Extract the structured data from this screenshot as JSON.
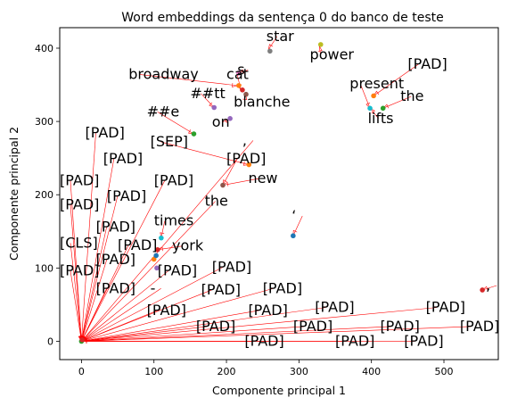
{
  "chart_data": {
    "type": "scatter",
    "title": "Word embeddings da sentença 0 do banco de teste",
    "xlabel": "Componente principal 1",
    "ylabel": "Componente principal 2",
    "xlim": [
      -30,
      575
    ],
    "ylim": [
      -25,
      428
    ],
    "xticks": [
      0,
      100,
      200,
      300,
      400,
      500
    ],
    "yticks": [
      0,
      100,
      200,
      300,
      400
    ],
    "grid": false,
    "arrow_color": "#ff0000",
    "points": [
      {
        "x": 0,
        "y": 0,
        "color": "#2ca02c"
      },
      {
        "x": 1,
        "y": 2,
        "color": "#d62728"
      },
      {
        "x": 330,
        "y": 405,
        "color": "#bcbd22"
      },
      {
        "x": 260,
        "y": 396,
        "color": "#7f7f7f"
      },
      {
        "x": 217,
        "y": 349,
        "color": "#ff7f0e"
      },
      {
        "x": 222,
        "y": 343,
        "color": "#d62728"
      },
      {
        "x": 227,
        "y": 337,
        "color": "#8c564b"
      },
      {
        "x": 217,
        "y": 366,
        "color": "#e377c2"
      },
      {
        "x": 183,
        "y": 319,
        "color": "#9467bd"
      },
      {
        "x": 205,
        "y": 304,
        "color": "#9467bd"
      },
      {
        "x": 155,
        "y": 283,
        "color": "#2ca02c"
      },
      {
        "x": 403,
        "y": 335,
        "color": "#ff7f0e"
      },
      {
        "x": 398,
        "y": 318,
        "color": "#17becf"
      },
      {
        "x": 416,
        "y": 318,
        "color": "#2ca02c"
      },
      {
        "x": 231,
        "y": 241,
        "color": "#ff7f0e"
      },
      {
        "x": 195,
        "y": 213,
        "color": "#8c564b"
      },
      {
        "x": 292,
        "y": 144,
        "color": "#1f77b4"
      },
      {
        "x": 553,
        "y": 70,
        "color": "#d62728"
      },
      {
        "x": 110,
        "y": 141,
        "color": "#17becf"
      },
      {
        "x": 105,
        "y": 125,
        "color": "#d62728"
      },
      {
        "x": 100,
        "y": 112,
        "color": "#ff7f0e"
      },
      {
        "x": 104,
        "y": 100,
        "color": "#9467bd"
      },
      {
        "x": 103,
        "y": 117,
        "color": "#1f77b4"
      }
    ],
    "labels": [
      {
        "text": "star",
        "x": 255,
        "y": 410,
        "tx": 258,
        "ty": 398
      },
      {
        "text": "power",
        "x": 315,
        "y": 385,
        "tx": 328,
        "ty": 403
      },
      {
        "text": "s",
        "x": 215,
        "y": 364,
        "tx": 217,
        "ty": 366
      },
      {
        "text": "broadway",
        "x": 65,
        "y": 358,
        "tx": 215,
        "ty": 349
      },
      {
        "text": "cat",
        "x": 200,
        "y": 358,
        "tx": 220,
        "ty": 343
      },
      {
        "text": "##tt",
        "x": 150,
        "y": 332,
        "tx": 183,
        "ty": 319
      },
      {
        "text": "blanche",
        "x": 210,
        "y": 320,
        "tx": 226,
        "ty": 337
      },
      {
        "text": "##e",
        "x": 90,
        "y": 307,
        "tx": 155,
        "ty": 283
      },
      {
        "text": "on",
        "x": 180,
        "y": 293,
        "tx": 205,
        "ty": 304
      },
      {
        "text": "[PAD]",
        "x": 450,
        "y": 372,
        "tx": 403,
        "ty": 335
      },
      {
        "text": "present",
        "x": 370,
        "y": 345,
        "tx": 398,
        "ty": 318
      },
      {
        "text": "the",
        "x": 440,
        "y": 328,
        "tx": 416,
        "ty": 318
      },
      {
        "text": "lifts",
        "x": 395,
        "y": 298,
        "tx": 398,
        "ty": 318
      },
      {
        "text": ",",
        "x": 222,
        "y": 268,
        "tx": 0,
        "ty": 0
      },
      {
        "text": "[SEP]",
        "x": 95,
        "y": 266,
        "tx": 231,
        "ty": 241
      },
      {
        "text": "[PAD]",
        "x": 200,
        "y": 243,
        "tx": 195,
        "ty": 213
      },
      {
        "text": "new",
        "x": 230,
        "y": 216,
        "tx": 195,
        "ty": 213
      },
      {
        "text": "the",
        "x": 170,
        "y": 185,
        "tx": 0,
        "ty": 0
      },
      {
        "text": "‘",
        "x": 290,
        "y": 165,
        "tx": 292,
        "ty": 144
      },
      {
        "text": "[PAD]",
        "x": 5,
        "y": 278,
        "tx": 0,
        "ty": 0
      },
      {
        "text": "[PAD]",
        "x": 30,
        "y": 243,
        "tx": 0,
        "ty": 0
      },
      {
        "text": "[PAD]",
        "x": -30,
        "y": 213,
        "tx": 0,
        "ty": 0
      },
      {
        "text": "[PAD]",
        "x": 100,
        "y": 213,
        "tx": 0,
        "ty": 0
      },
      {
        "text": "[PAD]",
        "x": 35,
        "y": 192,
        "tx": 0,
        "ty": 0
      },
      {
        "text": "[PAD]",
        "x": -30,
        "y": 180,
        "tx": 0,
        "ty": 0
      },
      {
        "text": "times",
        "x": 100,
        "y": 158,
        "tx": 110,
        "ty": 141
      },
      {
        "text": "[PAD]",
        "x": 20,
        "y": 150,
        "tx": 0,
        "ty": 0
      },
      {
        "text": "[CLS]",
        "x": -30,
        "y": 128,
        "tx": 0,
        "ty": 0
      },
      {
        "text": "[PAD]",
        "x": 50,
        "y": 125,
        "tx": 0,
        "ty": 0
      },
      {
        "text": "york",
        "x": 125,
        "y": 124,
        "tx": 105,
        "ty": 125
      },
      {
        "text": "[PAD]",
        "x": 20,
        "y": 105,
        "tx": 0,
        "ty": 0
      },
      {
        "text": "[PAD]",
        "x": -30,
        "y": 90,
        "tx": 0,
        "ty": 0
      },
      {
        "text": "[PAD]",
        "x": 105,
        "y": 90,
        "tx": 0,
        "ty": 0
      },
      {
        "text": "[PAD]",
        "x": 180,
        "y": 95,
        "tx": 0,
        "ty": 0
      },
      {
        "text": "[PAD]",
        "x": 20,
        "y": 66,
        "tx": 0,
        "ty": 0
      },
      {
        "text": "-",
        "x": 95,
        "y": 66,
        "tx": 0,
        "ty": 0
      },
      {
        "text": "[PAD]",
        "x": 165,
        "y": 64,
        "tx": 0,
        "ty": 0
      },
      {
        "text": "[PAD]",
        "x": 250,
        "y": 66,
        "tx": 0,
        "ty": 0
      },
      {
        "text": ",",
        "x": 558,
        "y": 70,
        "tx": 553,
        "ty": 70
      },
      {
        "text": "[PAD]",
        "x": 90,
        "y": 36,
        "tx": 0,
        "ty": 0
      },
      {
        "text": "[PAD]",
        "x": 230,
        "y": 36,
        "tx": 0,
        "ty": 0
      },
      {
        "text": "[PAD]",
        "x": 322,
        "y": 40,
        "tx": 0,
        "ty": 0
      },
      {
        "text": "[PAD]",
        "x": 475,
        "y": 40,
        "tx": 0,
        "ty": 0
      },
      {
        "text": "[PAD]",
        "x": 158,
        "y": 14,
        "tx": 0,
        "ty": 0
      },
      {
        "text": "[PAD]",
        "x": 292,
        "y": 14,
        "tx": 0,
        "ty": 0
      },
      {
        "text": "[PAD]",
        "x": 412,
        "y": 14,
        "tx": 0,
        "ty": 0
      },
      {
        "text": "[PAD]",
        "x": 522,
        "y": 14,
        "tx": 0,
        "ty": 0
      },
      {
        "text": "[PAD]",
        "x": 225,
        "y": -6,
        "tx": 0,
        "ty": 0
      },
      {
        "text": "[PAD]",
        "x": 350,
        "y": -6,
        "tx": 0,
        "ty": 0
      },
      {
        "text": "[PAD]",
        "x": 445,
        "y": -6,
        "tx": 0,
        "ty": 0
      }
    ]
  }
}
